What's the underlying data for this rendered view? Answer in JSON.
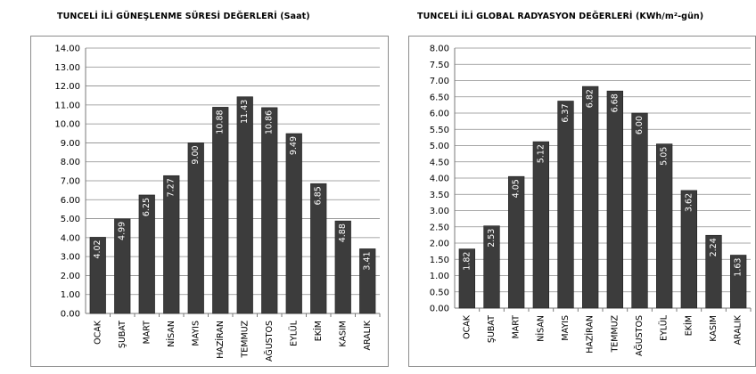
{
  "chart_data": [
    {
      "type": "bar",
      "title": "TUNCELİ İLİ GÜNEŞLENME SÜRESİ DEĞERLERİ (Saat)",
      "xlabel": "",
      "ylabel": "",
      "categories": [
        "OCAK",
        "ŞUBAT",
        "MART",
        "NİSAN",
        "MAYIS",
        "HAZİRAN",
        "TEMMUZ",
        "AĞUSTOS",
        "EYLÜL",
        "EKİM",
        "KASIM",
        "ARALIK"
      ],
      "values": [
        4.02,
        4.99,
        6.25,
        7.27,
        9.0,
        10.88,
        11.43,
        10.86,
        9.49,
        6.85,
        4.88,
        3.41
      ],
      "value_labels": [
        "4.02",
        "4.99",
        "6.25",
        "7.27",
        "9.00",
        "10.88",
        "11.43",
        "10.86",
        "9.49",
        "6.85",
        "4.88",
        "3.41"
      ],
      "ylim": [
        0,
        14
      ],
      "yticks": [
        "0.00",
        "1.00",
        "2.00",
        "3.00",
        "4.00",
        "5.00",
        "6.00",
        "7.00",
        "8.00",
        "9.00",
        "10.00",
        "11.00",
        "12.00",
        "13.00",
        "14.00"
      ],
      "grid": true,
      "bar_color": "#3c3c3c"
    },
    {
      "type": "bar",
      "title": "TUNCELİ İLİ GLOBAL RADYASYON DEĞERLERİ (KWh/m²-gün)",
      "xlabel": "",
      "ylabel": "",
      "categories": [
        "OCAK",
        "ŞUBAT",
        "MART",
        "NİSAN",
        "MAYIS",
        "HAZİRAN",
        "TEMMUZ",
        "AĞUSTOS",
        "EYLÜL",
        "EKİM",
        "KASIM",
        "ARALIK"
      ],
      "values": [
        1.82,
        2.53,
        4.05,
        5.12,
        6.37,
        6.82,
        6.68,
        6.0,
        5.05,
        3.62,
        2.24,
        1.63
      ],
      "value_labels": [
        "1.82",
        "2.53",
        "4.05",
        "5.12",
        "6.37",
        "6.82",
        "6.68",
        "6.00",
        "5.05",
        "3.62",
        "2.24",
        "1.63"
      ],
      "ylim": [
        0,
        8
      ],
      "yticks": [
        "0.00",
        "0.50",
        "1.00",
        "1.50",
        "2.00",
        "2.50",
        "3.00",
        "3.50",
        "4.00",
        "4.50",
        "5.00",
        "5.50",
        "6.00",
        "6.50",
        "7.00",
        "7.50",
        "8.00"
      ],
      "grid": true,
      "bar_color": "#3c3c3c"
    }
  ]
}
